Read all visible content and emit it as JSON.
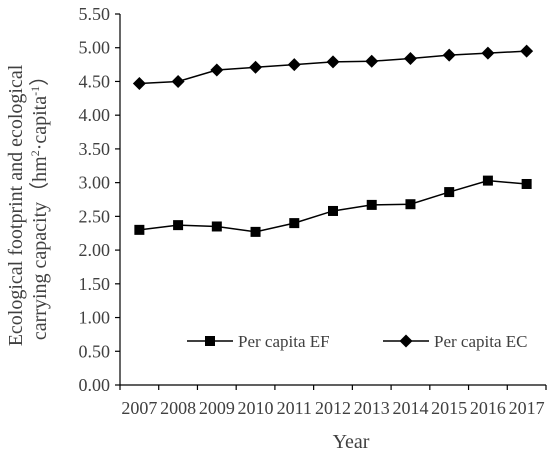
{
  "chart_data": {
    "type": "line",
    "title": "",
    "xlabel": "Year",
    "ylabel_line1": "Ecological footprint and ecological",
    "ylabel_line2_prefix": "carrying capacity（hm",
    "ylabel_unit_sup1": "2",
    "ylabel_unit_mid": "·capita",
    "ylabel_unit_sup2": "-1",
    "ylabel_line2_suffix": "）",
    "categories": [
      "2007",
      "2008",
      "2009",
      "2010",
      "2011",
      "2012",
      "2013",
      "2014",
      "2015",
      "2016",
      "2017"
    ],
    "ylim": [
      0,
      5.5
    ],
    "yticks": [
      "0.00",
      "0.50",
      "1.00",
      "1.50",
      "2.00",
      "2.50",
      "3.00",
      "3.50",
      "4.00",
      "4.50",
      "5.00",
      "5.50"
    ],
    "grid": false,
    "legend_position": "bottom-right",
    "series": [
      {
        "name": "Per capita EF",
        "marker": "square",
        "values": [
          2.3,
          2.37,
          2.35,
          2.27,
          2.4,
          2.58,
          2.67,
          2.68,
          2.86,
          3.03,
          2.98
        ]
      },
      {
        "name": "Per capita EC",
        "marker": "diamond",
        "values": [
          4.47,
          4.5,
          4.67,
          4.71,
          4.75,
          4.79,
          4.8,
          4.84,
          4.89,
          4.92,
          4.95
        ]
      }
    ]
  }
}
